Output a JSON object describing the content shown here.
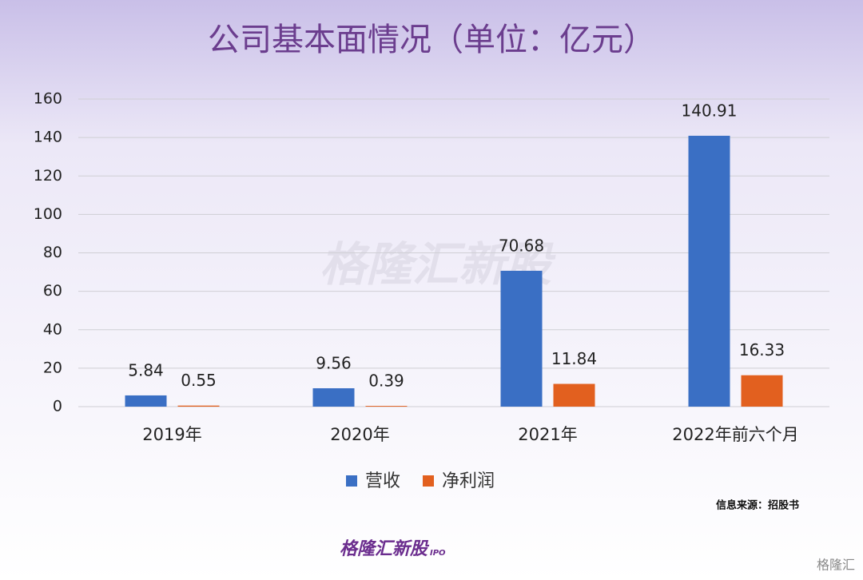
{
  "chart_data": {
    "type": "bar",
    "title": "公司基本面情况（单位：亿元）",
    "categories": [
      "2019年",
      "2020年",
      "2021年",
      "2022年前六个月"
    ],
    "series": [
      {
        "name": "营收",
        "color": "#3a6fc4",
        "values": [
          5.84,
          9.56,
          70.68,
          140.91
        ]
      },
      {
        "name": "净利润",
        "color": "#e2601f",
        "values": [
          0.55,
          0.39,
          11.84,
          16.33
        ]
      }
    ],
    "ylim": [
      0,
      160
    ],
    "yticks": [
      0,
      20,
      40,
      60,
      80,
      100,
      120,
      140,
      160
    ],
    "grid": true,
    "legend": "bottom",
    "source": "信息来源：招股书",
    "watermark": "格隆汇新股",
    "watermark_sub": "IPO",
    "corner_brand": "格隆汇"
  }
}
